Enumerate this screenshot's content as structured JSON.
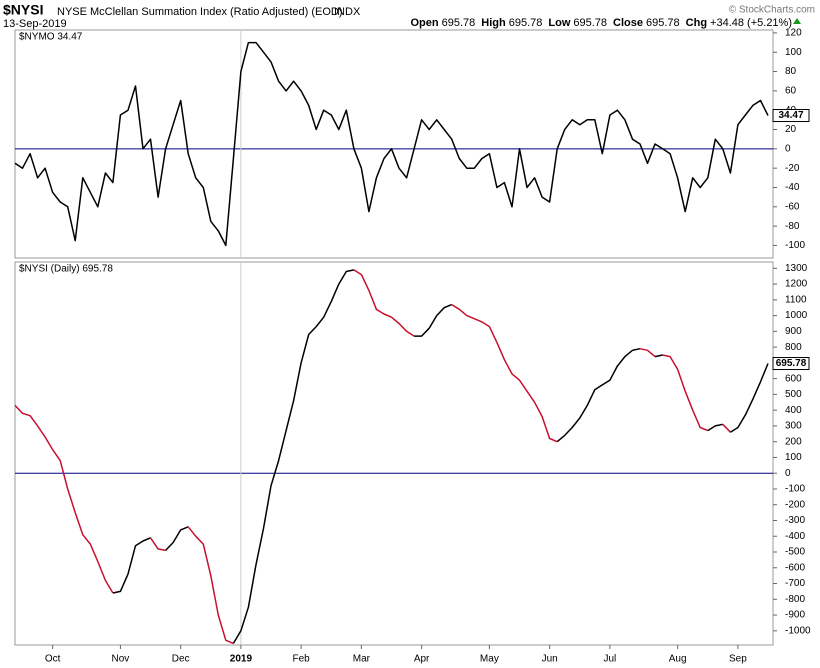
{
  "header": {
    "symbol": "$NYSI",
    "description": "NYSE McClellan Summation Index (Ratio Adjusted) (EOD)",
    "exchange": "INDX",
    "date": "13-Sep-2019",
    "quote": [
      {
        "label": "Open",
        "value": "695.78"
      },
      {
        "label": "High",
        "value": "695.78"
      },
      {
        "label": "Low",
        "value": "695.78"
      },
      {
        "label": "Close",
        "value": "695.78"
      },
      {
        "label": "Chg",
        "value": "+34.48 (+5.21%)"
      }
    ],
    "copyright": "© StockCharts.com"
  },
  "chart_data": [
    {
      "type": "line",
      "xlim": [
        0,
        100
      ],
      "ylim": [
        -113,
        123
      ],
      "yticks": [
        -100,
        -80,
        -60,
        -40,
        -20,
        0,
        20,
        40,
        60,
        80,
        100,
        120
      ],
      "zero_line": 0,
      "series": [
        {
          "name": "$NYMO 34.47",
          "color": "#000000",
          "values": [
            -15,
            -20,
            -5,
            -30,
            -20,
            -45,
            -55,
            -60,
            -95,
            -30,
            -45,
            -60,
            -25,
            -35,
            35,
            40,
            65,
            0,
            10,
            -50,
            0,
            25,
            50,
            -5,
            -30,
            -40,
            -75,
            -85,
            -100,
            -10,
            80,
            110,
            110,
            100,
            90,
            70,
            60,
            70,
            60,
            45,
            20,
            40,
            35,
            20,
            40,
            0,
            -20,
            -65,
            -30,
            -10,
            0,
            -20,
            -30,
            0,
            30,
            20,
            30,
            20,
            10,
            -10,
            -20,
            -20,
            -10,
            -5,
            -40,
            -35,
            -60,
            0,
            -40,
            -30,
            -50,
            -55,
            0,
            20,
            30,
            25,
            30,
            30,
            -5,
            35,
            40,
            30,
            10,
            5,
            -15,
            5,
            0,
            -5,
            -30,
            -65,
            -30,
            -40,
            -30,
            10,
            0,
            -25,
            25,
            35,
            45,
            50,
            34.47
          ]
        }
      ]
    },
    {
      "type": "line",
      "xlim": [
        0,
        100
      ],
      "ylim": [
        -1090,
        1340
      ],
      "yticks": [
        -1000,
        -900,
        -800,
        -700,
        -600,
        -500,
        -400,
        -300,
        -200,
        -100,
        0,
        100,
        200,
        300,
        400,
        500,
        600,
        700,
        800,
        900,
        1000,
        1100,
        1200,
        1300
      ],
      "zero_line": 0,
      "xticks": [
        {
          "value": 5,
          "label": "Oct"
        },
        {
          "value": 14,
          "label": "Nov"
        },
        {
          "value": 22,
          "label": "Dec"
        },
        {
          "value": 30,
          "label": "2019"
        },
        {
          "value": 38,
          "label": "Feb"
        },
        {
          "value": 46,
          "label": "Mar"
        },
        {
          "value": 54,
          "label": "Apr"
        },
        {
          "value": 63,
          "label": "May"
        },
        {
          "value": 71,
          "label": "Jun"
        },
        {
          "value": 79,
          "label": "Jul"
        },
        {
          "value": 88,
          "label": "Aug"
        },
        {
          "value": 96,
          "label": "Sep"
        }
      ],
      "series": [
        {
          "name": "$NYSI (Daily) 695.78",
          "color": "#000000",
          "down_color": "#c8102e",
          "values": [
            430,
            380,
            365,
            300,
            230,
            150,
            80,
            -100,
            -250,
            -390,
            -450,
            -560,
            -680,
            -760,
            -750,
            -640,
            -460,
            -430,
            -410,
            -480,
            -490,
            -440,
            -360,
            -340,
            -400,
            -450,
            -650,
            -900,
            -1060,
            -1080,
            -1000,
            -850,
            -580,
            -350,
            -80,
            80,
            270,
            460,
            700,
            880,
            930,
            990,
            1090,
            1200,
            1280,
            1290,
            1260,
            1160,
            1040,
            1010,
            990,
            950,
            900,
            870,
            870,
            920,
            1000,
            1050,
            1070,
            1040,
            1000,
            980,
            960,
            930,
            830,
            720,
            630,
            590,
            520,
            450,
            360,
            220,
            200,
            240,
            290,
            350,
            430,
            530,
            560,
            590,
            680,
            740,
            780,
            790,
            780,
            740,
            750,
            740,
            660,
            520,
            400,
            290,
            270,
            300,
            310,
            260,
            290,
            370,
            470,
            580,
            695.78
          ]
        }
      ]
    }
  ]
}
